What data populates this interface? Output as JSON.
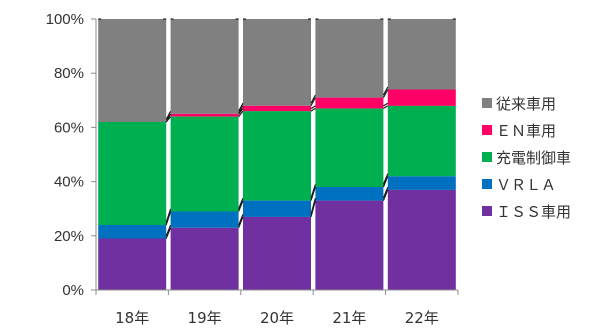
{
  "chart_data": {
    "type": "bar",
    "stacked": true,
    "percent": true,
    "categories": [
      "18年",
      "19年",
      "20年",
      "21年",
      "22年"
    ],
    "yticks": [
      "0%",
      "20%",
      "40%",
      "60%",
      "80%",
      "100%"
    ],
    "ylim": [
      0,
      100
    ],
    "grid": false,
    "legend_position": "right",
    "series": [
      {
        "name": "ＩＳＳ車用",
        "color": "#7030A0",
        "values": [
          19,
          23,
          27,
          33,
          37
        ]
      },
      {
        "name": "ＶＲＬＡ",
        "color": "#0070C0",
        "values": [
          5,
          6,
          6,
          5,
          5
        ]
      },
      {
        "name": "充電制御車",
        "color": "#00B050",
        "values": [
          38,
          35,
          33,
          29,
          26
        ]
      },
      {
        "name": "ＥＮ車用",
        "color": "#FF0066",
        "values": [
          0,
          1,
          2,
          4,
          6
        ]
      },
      {
        "name": "従来車用",
        "color": "#808080",
        "values": [
          38,
          35,
          32,
          29,
          26
        ]
      }
    ],
    "legend_order": [
      "従来車用",
      "ＥＮ車用",
      "充電制御車",
      "ＶＲＬＡ",
      "ＩＳＳ車用"
    ]
  }
}
